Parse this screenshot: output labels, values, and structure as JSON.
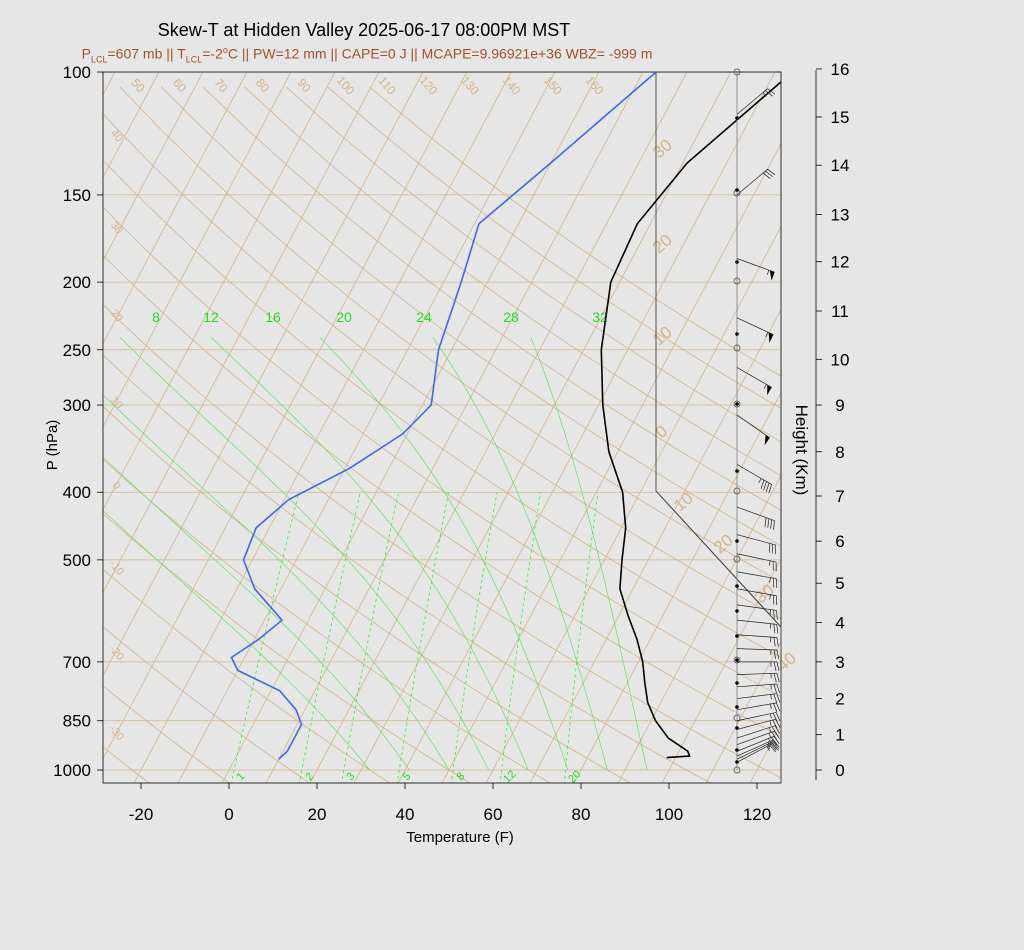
{
  "header": {
    "title": "Skew-T at Hidden Valley 2025-06-17 08:00PM MST",
    "subtitle": {
      "p_lcl_prefix": "P",
      "p_lcl_sub": "LCL",
      "p_lcl_value": "=607 mb || T",
      "t_lcl_sub": "LCL",
      "t_lcl_value": "=-2",
      "t_lcl_unit": "C || PW=12 mm || CAPE=0 J || MCAPE=9.96921e+36 WBZ= -999 m",
      "degree_mark": "o"
    }
  },
  "colors": {
    "background": "#e6e6e6",
    "isotherm": "#d2b48c",
    "dry_adiabat": "#d2b48c",
    "mixing_ratio": "#33ee33",
    "moist_adiabat": "#55dd55",
    "dewpoint": "#4169e1",
    "temperature": "#000000",
    "subtitle": "#a0522d"
  },
  "chart_data": {
    "type": "line",
    "title": "Skew-T at Hidden Valley 2025-06-17 08:00PM MST",
    "xlabel": "Temperature (F)",
    "ylabel": "P (hPa)",
    "y2label": "Height (Km)",
    "x_ticks": [
      "-20",
      "0",
      "20",
      "40",
      "60",
      "80",
      "100",
      "120"
    ],
    "x_tick_values": [
      -20,
      0,
      20,
      40,
      60,
      80,
      100,
      120
    ],
    "xlim": [
      -28,
      126
    ],
    "y_ticks": [
      "100",
      "150",
      "200",
      "250",
      "300",
      "400",
      "500",
      "700",
      "850",
      "1000"
    ],
    "y_tick_values": [
      100,
      150,
      200,
      250,
      300,
      400,
      500,
      700,
      850,
      1000
    ],
    "ylim": [
      1050,
      100
    ],
    "y_scale": "log",
    "height_ticks": [
      "0",
      "1",
      "2",
      "3",
      "4",
      "5",
      "6",
      "7",
      "8",
      "9",
      "10",
      "11",
      "12",
      "13",
      "14",
      "15",
      "16"
    ],
    "height_tick_pressures": [
      1000,
      890,
      790,
      700,
      615,
      540,
      470,
      405,
      350,
      300,
      258,
      220,
      187,
      160,
      136,
      116,
      99
    ],
    "isotherm_labels": [
      {
        "text": "50",
        "value": 50
      },
      {
        "text": "60",
        "value": 60
      },
      {
        "text": "70",
        "value": 70
      },
      {
        "text": "80",
        "value": 80
      },
      {
        "text": "90",
        "value": 90
      },
      {
        "text": "100",
        "value": 100
      },
      {
        "text": "110",
        "value": 110
      },
      {
        "text": "120",
        "value": 120
      },
      {
        "text": "130",
        "value": 130
      },
      {
        "text": "140",
        "value": 140
      },
      {
        "text": "150",
        "value": 150
      },
      {
        "text": "160",
        "value": 160
      }
    ],
    "left_labels": [
      "40",
      "30",
      "20",
      "10",
      "0",
      "-10",
      "-20",
      "-30"
    ],
    "right_labels": [
      "30",
      "20",
      "10",
      "0",
      "10",
      "20",
      "30",
      "40"
    ],
    "mixing_ratio_top_labels": [
      "8",
      "12",
      "16",
      "20",
      "24",
      "28",
      "32"
    ],
    "mixing_ratio_bottom_labels": [
      "1",
      "2",
      "3",
      "5",
      "8",
      "12",
      "20"
    ],
    "series": [
      {
        "id": "temperature",
        "points": [
          {
            "p": 100,
            "t": 44
          },
          {
            "p": 135,
            "t": 31
          },
          {
            "p": 165,
            "t": 27
          },
          {
            "p": 200,
            "t": 28
          },
          {
            "p": 250,
            "t": 34
          },
          {
            "p": 300,
            "t": 41
          },
          {
            "p": 350,
            "t": 48
          },
          {
            "p": 400,
            "t": 56
          },
          {
            "p": 450,
            "t": 61
          },
          {
            "p": 500,
            "t": 64
          },
          {
            "p": 550,
            "t": 67
          },
          {
            "p": 600,
            "t": 72
          },
          {
            "p": 650,
            "t": 77
          },
          {
            "p": 700,
            "t": 81
          },
          {
            "p": 750,
            "t": 84
          },
          {
            "p": 800,
            "t": 87
          },
          {
            "p": 850,
            "t": 91
          },
          {
            "p": 900,
            "t": 96
          },
          {
            "p": 940,
            "t": 102
          },
          {
            "p": 955,
            "t": 103
          },
          {
            "p": 960,
            "t": 98
          }
        ]
      },
      {
        "id": "dewpoint",
        "points": [
          {
            "p": 100,
            "t": 13
          },
          {
            "p": 135,
            "t": 0
          },
          {
            "p": 165,
            "t": -9
          },
          {
            "p": 200,
            "t": -6
          },
          {
            "p": 250,
            "t": -3
          },
          {
            "p": 300,
            "t": 2
          },
          {
            "p": 330,
            "t": -1
          },
          {
            "p": 370,
            "t": -9
          },
          {
            "p": 410,
            "t": -19
          },
          {
            "p": 450,
            "t": -23
          },
          {
            "p": 500,
            "t": -22
          },
          {
            "p": 550,
            "t": -16
          },
          {
            "p": 610,
            "t": -6
          },
          {
            "p": 650,
            "t": -9
          },
          {
            "p": 690,
            "t": -13
          },
          {
            "p": 720,
            "t": -10
          },
          {
            "p": 770,
            "t": 2
          },
          {
            "p": 820,
            "t": 8
          },
          {
            "p": 860,
            "t": 11
          },
          {
            "p": 900,
            "t": 11
          },
          {
            "p": 940,
            "t": 11
          },
          {
            "p": 965,
            "t": 10
          }
        ]
      }
    ],
    "wind_barbs": [
      {
        "p": 115,
        "speed": 25,
        "dir": 230
      },
      {
        "p": 150,
        "speed": 30,
        "dir": 230
      },
      {
        "p": 185,
        "speed": 55,
        "dir": 290
      },
      {
        "p": 225,
        "speed": 55,
        "dir": 295
      },
      {
        "p": 265,
        "speed": 55,
        "dir": 300
      },
      {
        "p": 310,
        "speed": 50,
        "dir": 305
      },
      {
        "p": 365,
        "speed": 45,
        "dir": 300
      },
      {
        "p": 420,
        "speed": 40,
        "dir": 290
      },
      {
        "p": 460,
        "speed": 30,
        "dir": 285
      },
      {
        "p": 490,
        "speed": 25,
        "dir": 282
      },
      {
        "p": 520,
        "speed": 25,
        "dir": 280
      },
      {
        "p": 550,
        "speed": 25,
        "dir": 280
      },
      {
        "p": 580,
        "speed": 25,
        "dir": 278
      },
      {
        "p": 610,
        "speed": 25,
        "dir": 276
      },
      {
        "p": 640,
        "speed": 25,
        "dir": 274
      },
      {
        "p": 670,
        "speed": 25,
        "dir": 272
      },
      {
        "p": 700,
        "speed": 25,
        "dir": 270
      },
      {
        "p": 730,
        "speed": 25,
        "dir": 268
      },
      {
        "p": 760,
        "speed": 25,
        "dir": 266
      },
      {
        "p": 790,
        "speed": 25,
        "dir": 263
      },
      {
        "p": 820,
        "speed": 25,
        "dir": 260
      },
      {
        "p": 850,
        "speed": 25,
        "dir": 258
      },
      {
        "p": 875,
        "speed": 25,
        "dir": 255
      },
      {
        "p": 900,
        "speed": 25,
        "dir": 252
      },
      {
        "p": 920,
        "speed": 25,
        "dir": 250
      },
      {
        "p": 940,
        "speed": 25,
        "dir": 248
      },
      {
        "p": 955,
        "speed": 25,
        "dir": 246
      },
      {
        "p": 965,
        "speed": 25,
        "dir": 244
      },
      {
        "p": 975,
        "speed": 25,
        "dir": 242
      }
    ]
  }
}
